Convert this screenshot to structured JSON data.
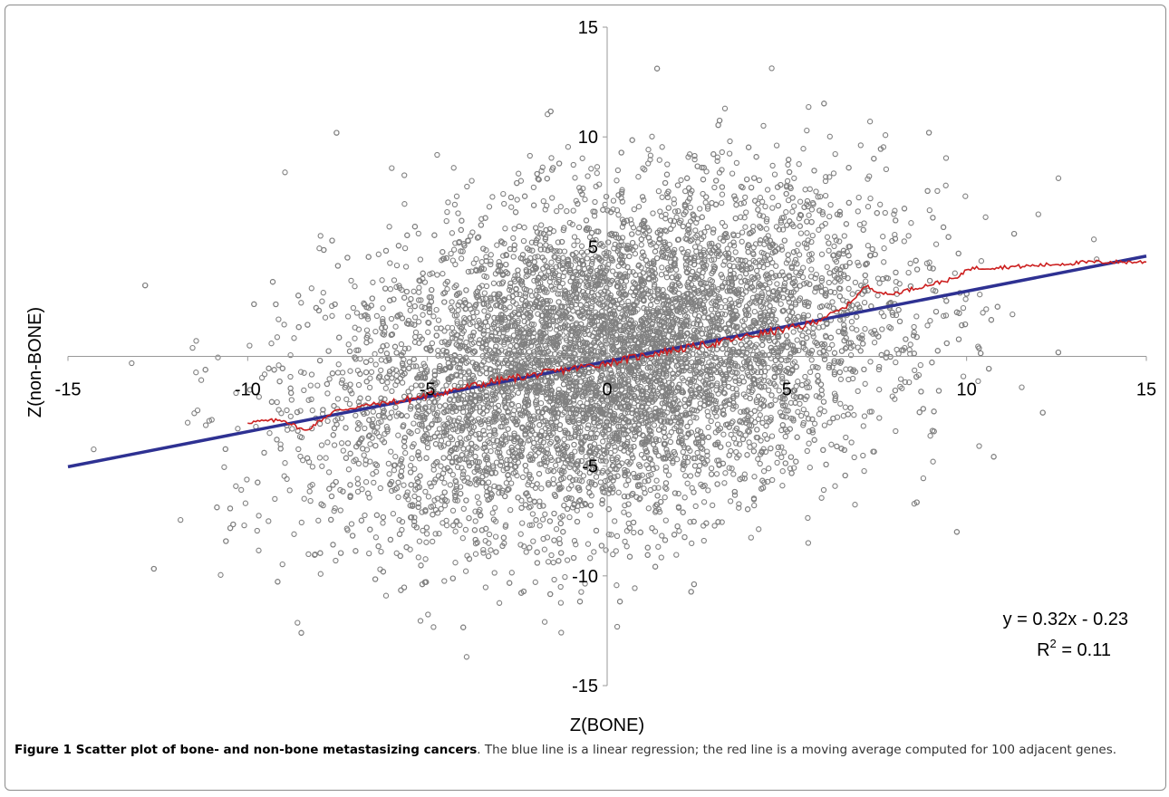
{
  "chart_data": {
    "type": "scatter",
    "xlabel": "Z(BONE)",
    "ylabel": "Z(non-BONE)",
    "xlim": [
      -15,
      15
    ],
    "ylim": [
      -15,
      15
    ],
    "x_ticks": [
      "-15",
      "-10",
      "-5",
      "0",
      "5",
      "10",
      "15"
    ],
    "y_ticks": [
      "15",
      "10",
      "5",
      "-5",
      "-10",
      "-15"
    ],
    "grid": false,
    "n_points_approx": 9000,
    "marker": "open-circle",
    "point_color": "#808080",
    "series": [
      {
        "type": "scatter",
        "color": "#808080"
      },
      {
        "type": "line",
        "color": "#2e3192",
        "slope": 0.32,
        "intercept": -0.23
      },
      {
        "type": "line",
        "color": "#cc1f1f",
        "points": [
          [
            -10,
            -3.0
          ],
          [
            -9,
            -2.9
          ],
          [
            -8.4,
            -3.4
          ],
          [
            -7.6,
            -2.5
          ],
          [
            -6.6,
            -2.2
          ],
          [
            -5.6,
            -2.0
          ],
          [
            -4.5,
            -1.6
          ],
          [
            -3,
            -1.1
          ],
          [
            -1.5,
            -0.7
          ],
          [
            0,
            -0.3
          ],
          [
            1.5,
            0.2
          ],
          [
            3,
            0.6
          ],
          [
            4.5,
            1.1
          ],
          [
            5.5,
            1.4
          ],
          [
            6.6,
            2.2
          ],
          [
            7.2,
            3.2
          ],
          [
            7.8,
            2.8
          ],
          [
            8.8,
            3.2
          ],
          [
            9.8,
            3.6
          ],
          [
            10,
            4.0
          ],
          [
            11.5,
            4.1
          ],
          [
            13.5,
            4.3
          ],
          [
            15,
            4.3
          ]
        ]
      }
    ],
    "annotation": {
      "equation": "y = 0.32x - 0.23",
      "r2_label": "R",
      "r2_sup": "2",
      "r2_value": " = 0.11"
    }
  },
  "caption": {
    "title": "Figure 1 Scatter plot of bone- and non-bone metastasizing cancers",
    "text": ". The blue line is a linear regression; the red line is a moving average computed for 100 adjacent genes."
  }
}
